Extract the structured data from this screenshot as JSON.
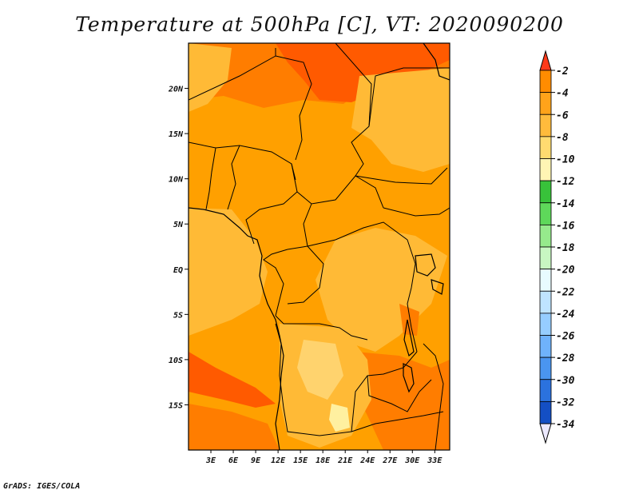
{
  "title": "Temperature at 500hPa [C], VT: 2020090200",
  "credit": "GrADS: IGES/COLA",
  "map": {
    "lat_range": [
      -20,
      25
    ],
    "lon_range": [
      0,
      35
    ],
    "lat_ticks": [
      {
        "value": 20,
        "label": "20N"
      },
      {
        "value": 15,
        "label": "15N"
      },
      {
        "value": 10,
        "label": "10N"
      },
      {
        "value": 5,
        "label": "5N"
      },
      {
        "value": 0,
        "label": "EQ"
      },
      {
        "value": -5,
        "label": "5S"
      },
      {
        "value": -10,
        "label": "10S"
      },
      {
        "value": -15,
        "label": "15S"
      }
    ],
    "lon_ticks": [
      {
        "value": 3,
        "label": "3E"
      },
      {
        "value": 6,
        "label": "6E"
      },
      {
        "value": 9,
        "label": "9E"
      },
      {
        "value": 12,
        "label": "12E"
      },
      {
        "value": 15,
        "label": "15E"
      },
      {
        "value": 18,
        "label": "18E"
      },
      {
        "value": 21,
        "label": "21E"
      },
      {
        "value": 24,
        "label": "24E"
      },
      {
        "value": 27,
        "label": "27E"
      },
      {
        "value": 30,
        "label": "30E"
      },
      {
        "value": 33,
        "label": "33E"
      }
    ],
    "field_colors": {
      "warmest": "#ff5a00",
      "warm": "#ff7d00",
      "mid": "#ffa000",
      "cool": "#ffba36",
      "cooler": "#ffd36e",
      "coolest": "#fff0a0"
    }
  },
  "colorbar": {
    "labels": [
      "-2",
      "-4",
      "-6",
      "-8",
      "-10",
      "-12",
      "-14",
      "-16",
      "-18",
      "-20",
      "-22",
      "-24",
      "-26",
      "-28",
      "-30",
      "-32",
      "-34"
    ],
    "top_arrow_color": "#ff3a1a",
    "bottom_arrow_color": "#ece9ff",
    "band_colors": [
      "#ff6400",
      "#ff8c00",
      "#ffa31a",
      "#ffbb3c",
      "#ffdb70",
      "#fff5b4",
      "#38c23a",
      "#5ed85a",
      "#96ea8c",
      "#c8f7c2",
      "#e8fbff",
      "#bfe4ff",
      "#96cdff",
      "#6fb2fb",
      "#4a95f0",
      "#2b72de",
      "#144fc4",
      "#082a8f",
      "#0c0c6e"
    ]
  }
}
